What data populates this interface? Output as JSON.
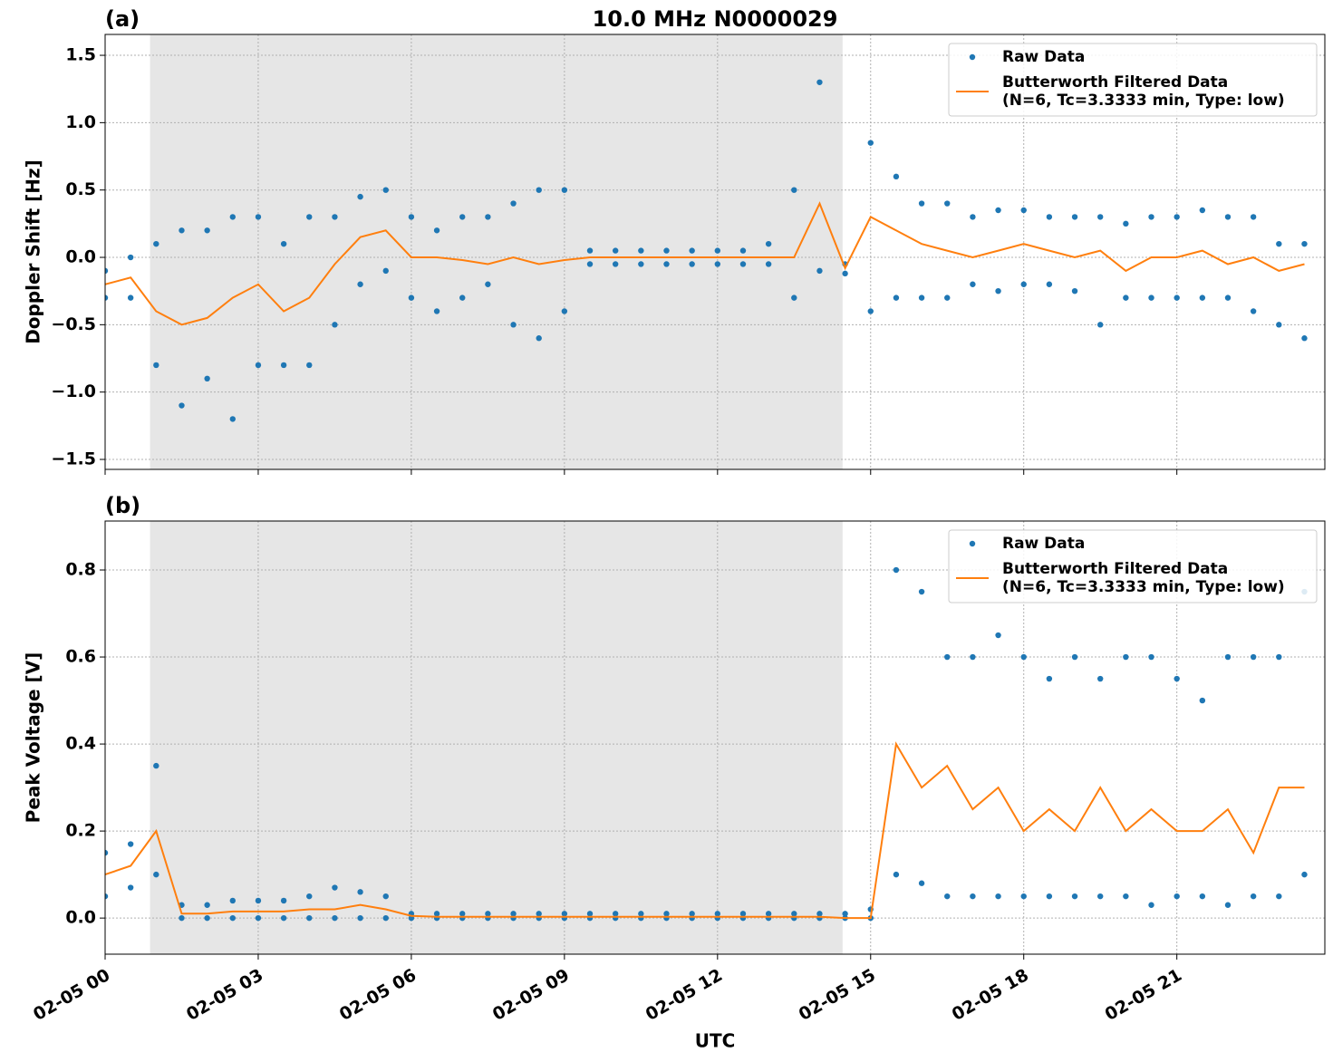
{
  "chart_data": [
    {
      "type": "line",
      "panel_label": "(a)",
      "title": "10.0 MHz N0000029",
      "ylabel": "Doppler Shift [Hz]",
      "xlim": [
        0,
        23.9
      ],
      "ylim": [
        -1.574,
        1.655
      ],
      "grid": true,
      "legend": "upper right",
      "shaded_span": [
        0.88,
        14.45
      ],
      "xticks": [
        0,
        3,
        6,
        9,
        12,
        15,
        18,
        21
      ],
      "yticks": [
        {
          "value": -1.5,
          "label": "−1.5"
        },
        {
          "value": -1.0,
          "label": "−1.0"
        },
        {
          "value": -0.5,
          "label": "−0.5"
        },
        {
          "value": 0,
          "label": "0.0"
        },
        0.5,
        {
          "value": 1.0,
          "label": "1.0"
        },
        1.5
      ],
      "series": [
        {
          "name": "Raw Data",
          "style": "points",
          "color": "#1f77b4",
          "x": [
            0,
            0,
            0.5,
            0.5,
            1,
            1,
            1.5,
            1.5,
            2,
            2,
            2.5,
            2.5,
            3,
            3,
            3.5,
            3.5,
            4,
            4,
            4.5,
            4.5,
            5,
            5,
            5.5,
            5.5,
            6,
            6,
            6.5,
            6.5,
            7,
            7,
            7.5,
            7.5,
            8,
            8,
            8.5,
            8.5,
            9,
            9,
            9.5,
            9.5,
            10,
            10,
            10.5,
            10.5,
            11,
            11,
            11.5,
            11.5,
            12,
            12,
            12.5,
            12.5,
            13,
            13,
            13.5,
            13.5,
            14,
            14,
            14.5,
            14.5,
            15,
            15,
            15.5,
            15.5,
            16,
            16,
            16.5,
            16.5,
            17,
            17,
            17.5,
            17.5,
            18,
            18,
            18.5,
            18.5,
            19,
            19,
            19.5,
            19.5,
            20,
            20,
            20.5,
            20.5,
            21,
            21,
            21.5,
            21.5,
            22,
            22,
            22.5,
            22.5,
            23,
            23,
            23.5,
            23.5
          ],
          "values": [
            -0.1,
            -0.3,
            0.0,
            -0.3,
            0.1,
            -0.8,
            0.2,
            -1.1,
            0.2,
            -0.9,
            0.3,
            -1.2,
            0.3,
            -0.8,
            0.1,
            -0.8,
            0.3,
            -0.8,
            0.3,
            -0.5,
            0.45,
            -0.2,
            0.5,
            -0.1,
            0.3,
            -0.3,
            0.2,
            -0.4,
            0.3,
            -0.3,
            0.3,
            -0.2,
            0.4,
            -0.5,
            0.5,
            -0.6,
            0.5,
            -0.4,
            0.05,
            -0.05,
            0.05,
            -0.05,
            0.05,
            -0.05,
            0.05,
            -0.05,
            0.05,
            -0.05,
            0.05,
            -0.05,
            0.05,
            -0.05,
            0.1,
            -0.05,
            0.5,
            -0.3,
            1.3,
            -0.1,
            -0.05,
            -0.12,
            0.85,
            -0.4,
            0.6,
            -0.3,
            0.4,
            -0.3,
            0.4,
            -0.3,
            0.3,
            -0.2,
            0.35,
            -0.25,
            0.35,
            -0.2,
            0.3,
            -0.2,
            0.3,
            -0.25,
            0.3,
            -0.5,
            0.25,
            -0.3,
            0.3,
            -0.3,
            0.3,
            -0.3,
            0.35,
            -0.3,
            0.3,
            -0.3,
            0.3,
            -0.4,
            0.1,
            -0.5,
            0.1,
            -0.6
          ]
        },
        {
          "name": "Butterworth Filtered Data",
          "name_line2": "(N=6, Tc=3.3333 min, Type: low)",
          "style": "line",
          "color": "#ff7f0e",
          "x": [
            0,
            0.5,
            1,
            1.5,
            2,
            2.5,
            3,
            3.5,
            4,
            4.5,
            5,
            5.5,
            6,
            6.5,
            7,
            7.5,
            8,
            8.5,
            9,
            9.5,
            10,
            10.5,
            11,
            11.5,
            12,
            12.5,
            13,
            13.5,
            14,
            14.5,
            15,
            15.5,
            16,
            16.5,
            17,
            17.5,
            18,
            18.5,
            19,
            19.5,
            20,
            20.5,
            21,
            21.5,
            22,
            22.5,
            23,
            23.5
          ],
          "values": [
            -0.2,
            -0.15,
            -0.4,
            -0.5,
            -0.45,
            -0.3,
            -0.2,
            -0.4,
            -0.3,
            -0.05,
            0.15,
            0.2,
            0.0,
            0.0,
            -0.02,
            -0.05,
            0.0,
            -0.05,
            -0.02,
            0.0,
            0.0,
            0.0,
            0.0,
            0.0,
            0.0,
            0.0,
            0.0,
            0.0,
            0.4,
            -0.08,
            0.3,
            0.2,
            0.1,
            0.05,
            0.0,
            0.05,
            0.1,
            0.05,
            0.0,
            0.05,
            -0.1,
            0.0,
            0.0,
            0.05,
            -0.05,
            0.0,
            -0.1,
            -0.05
          ]
        }
      ]
    },
    {
      "type": "line",
      "panel_label": "(b)",
      "ylabel": "Peak Voltage [V]",
      "xlabel": "UTC",
      "xlim": [
        0,
        23.9
      ],
      "ylim": [
        -0.083,
        0.9125
      ],
      "grid": true,
      "legend": "upper right",
      "shaded_span": [
        0.88,
        14.45
      ],
      "xticks": [
        {
          "value": 0,
          "label": "02-05 00"
        },
        {
          "value": 3,
          "label": "02-05 03"
        },
        {
          "value": 6,
          "label": "02-05 06"
        },
        {
          "value": 9,
          "label": "02-05 09"
        },
        {
          "value": 12,
          "label": "02-05 12"
        },
        {
          "value": 15,
          "label": "02-05 15"
        },
        {
          "value": 18,
          "label": "02-05 18"
        },
        {
          "value": 21,
          "label": "02-05 21"
        }
      ],
      "yticks": [
        {
          "value": 0,
          "label": "0.0"
        },
        0.2,
        0.4,
        0.6,
        0.8
      ],
      "series": [
        {
          "name": "Raw Data",
          "style": "points",
          "color": "#1f77b4",
          "x": [
            0,
            0,
            0.5,
            0.5,
            1,
            1,
            1.5,
            1.5,
            2,
            2,
            2.5,
            2.5,
            3,
            3,
            3.5,
            3.5,
            4,
            4,
            4.5,
            4.5,
            5,
            5,
            5.5,
            5.5,
            6,
            6,
            6.5,
            6.5,
            7,
            7,
            7.5,
            7.5,
            8,
            8,
            8.5,
            8.5,
            9,
            9,
            9.5,
            9.5,
            10,
            10,
            10.5,
            10.5,
            11,
            11,
            11.5,
            11.5,
            12,
            12,
            12.5,
            12.5,
            13,
            13,
            13.5,
            13.5,
            14,
            14,
            14.5,
            14.5,
            15,
            15,
            15.5,
            15.5,
            16,
            16,
            16.5,
            16.5,
            17,
            17,
            17.5,
            17.5,
            18,
            18,
            18.5,
            18.5,
            19,
            19,
            19.5,
            19.5,
            20,
            20,
            20.5,
            20.5,
            21,
            21,
            21.5,
            21.5,
            22,
            22,
            22.5,
            22.5,
            23,
            23,
            23.5,
            23.5
          ],
          "values": [
            0.15,
            0.05,
            0.17,
            0.07,
            0.35,
            0.1,
            0.03,
            0,
            0.03,
            0,
            0.04,
            0,
            0.04,
            0,
            0.04,
            0,
            0.05,
            0,
            0.07,
            0,
            0.06,
            0,
            0.05,
            0,
            0.01,
            0,
            0.01,
            0,
            0.01,
            0,
            0.01,
            0,
            0.01,
            0,
            0.01,
            0,
            0.01,
            0,
            0.01,
            0,
            0.01,
            0,
            0.01,
            0,
            0.01,
            0,
            0.01,
            0,
            0.01,
            0,
            0.01,
            0,
            0.01,
            0,
            0.01,
            0,
            0.01,
            0,
            0.01,
            0,
            0.02,
            0,
            0.8,
            0.1,
            0.75,
            0.08,
            0.6,
            0.05,
            0.6,
            0.05,
            0.65,
            0.05,
            0.6,
            0.05,
            0.55,
            0.05,
            0.6,
            0.05,
            0.55,
            0.05,
            0.6,
            0.05,
            0.6,
            0.03,
            0.55,
            0.05,
            0.5,
            0.05,
            0.6,
            0.03,
            0.6,
            0.05,
            0.6,
            0.05,
            0.75,
            0.1
          ]
        },
        {
          "name": "Butterworth Filtered Data",
          "name_line2": "(N=6, Tc=3.3333 min, Type: low)",
          "style": "line",
          "color": "#ff7f0e",
          "x": [
            0,
            0.5,
            1,
            1.5,
            2,
            2.5,
            3,
            3.5,
            4,
            4.5,
            5,
            5.5,
            6,
            6.5,
            7,
            7.5,
            8,
            8.5,
            9,
            9.5,
            10,
            10.5,
            11,
            11.5,
            12,
            12.5,
            13,
            13.5,
            14,
            14.5,
            15,
            15.5,
            16,
            16.5,
            17,
            17.5,
            18,
            18.5,
            19,
            19.5,
            20,
            20.5,
            21,
            21.5,
            22,
            22.5,
            23,
            23.5
          ],
          "values": [
            0.1,
            0.12,
            0.2,
            0.01,
            0.01,
            0.015,
            0.015,
            0.015,
            0.02,
            0.02,
            0.03,
            0.02,
            0.005,
            0.003,
            0.003,
            0.003,
            0.003,
            0.003,
            0.003,
            0.003,
            0.003,
            0.003,
            0.003,
            0.003,
            0.003,
            0.003,
            0.003,
            0.003,
            0.003,
            0.0,
            0.0,
            0.4,
            0.3,
            0.35,
            0.25,
            0.3,
            0.2,
            0.25,
            0.2,
            0.3,
            0.2,
            0.25,
            0.2,
            0.2,
            0.25,
            0.15,
            0.3,
            0.3
          ]
        }
      ]
    }
  ]
}
